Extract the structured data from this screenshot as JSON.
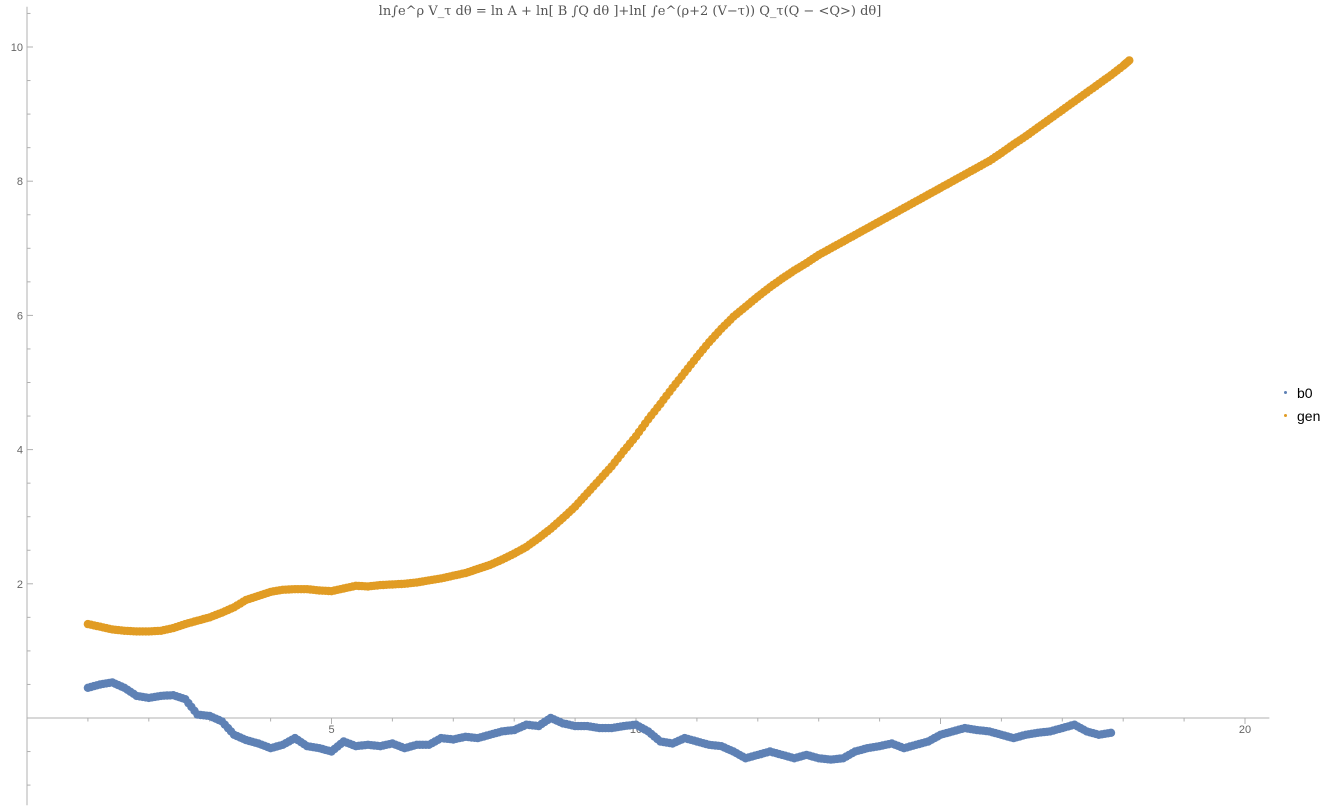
{
  "chart_data": {
    "type": "scatter",
    "title": "ln∫e^ρ V_τ dθ = ln A + ln[ B ∫Q dθ ]+ln[ ∫e^(ρ+2 (V−τ)) Q_τ(Q − <Q>) dθ]",
    "xlabel": "",
    "ylabel": "",
    "xlim": [
      0,
      20.4
    ],
    "ylim": [
      -1.3,
      10.6
    ],
    "x_ticks": [
      "5",
      "10",
      "20"
    ],
    "y_ticks": [
      "2",
      "4",
      "6",
      "8",
      "10"
    ],
    "grid": false,
    "legend_position": "right",
    "series": [
      {
        "name": "b0",
        "color": "#5E81B5",
        "points": [
          [
            1.0,
            0.45
          ],
          [
            1.2,
            0.5
          ],
          [
            1.4,
            0.53
          ],
          [
            1.6,
            0.45
          ],
          [
            1.8,
            0.33
          ],
          [
            2.0,
            0.3
          ],
          [
            2.2,
            0.33
          ],
          [
            2.4,
            0.34
          ],
          [
            2.6,
            0.28
          ],
          [
            2.8,
            0.05
          ],
          [
            3.0,
            0.03
          ],
          [
            3.2,
            -0.05
          ],
          [
            3.4,
            -0.25
          ],
          [
            3.6,
            -0.33
          ],
          [
            3.8,
            -0.38
          ],
          [
            4.0,
            -0.45
          ],
          [
            4.2,
            -0.4
          ],
          [
            4.4,
            -0.3
          ],
          [
            4.6,
            -0.42
          ],
          [
            4.8,
            -0.45
          ],
          [
            5.0,
            -0.5
          ],
          [
            5.2,
            -0.35
          ],
          [
            5.4,
            -0.42
          ],
          [
            5.6,
            -0.4
          ],
          [
            5.8,
            -0.42
          ],
          [
            6.0,
            -0.38
          ],
          [
            6.2,
            -0.45
          ],
          [
            6.4,
            -0.4
          ],
          [
            6.6,
            -0.4
          ],
          [
            6.8,
            -0.3
          ],
          [
            7.0,
            -0.32
          ],
          [
            7.2,
            -0.28
          ],
          [
            7.4,
            -0.3
          ],
          [
            7.6,
            -0.25
          ],
          [
            7.8,
            -0.2
          ],
          [
            8.0,
            -0.18
          ],
          [
            8.2,
            -0.1
          ],
          [
            8.4,
            -0.12
          ],
          [
            8.6,
            0.0
          ],
          [
            8.8,
            -0.08
          ],
          [
            9.0,
            -0.12
          ],
          [
            9.2,
            -0.12
          ],
          [
            9.4,
            -0.15
          ],
          [
            9.6,
            -0.15
          ],
          [
            9.8,
            -0.12
          ],
          [
            10.0,
            -0.1
          ],
          [
            10.2,
            -0.2
          ],
          [
            10.4,
            -0.35
          ],
          [
            10.6,
            -0.38
          ],
          [
            10.8,
            -0.3
          ],
          [
            11.0,
            -0.35
          ],
          [
            11.2,
            -0.4
          ],
          [
            11.4,
            -0.42
          ],
          [
            11.6,
            -0.5
          ],
          [
            11.8,
            -0.6
          ],
          [
            12.0,
            -0.55
          ],
          [
            12.2,
            -0.5
          ],
          [
            12.4,
            -0.55
          ],
          [
            12.6,
            -0.6
          ],
          [
            12.8,
            -0.55
          ],
          [
            13.0,
            -0.6
          ],
          [
            13.2,
            -0.62
          ],
          [
            13.4,
            -0.6
          ],
          [
            13.6,
            -0.5
          ],
          [
            13.8,
            -0.45
          ],
          [
            14.0,
            -0.42
          ],
          [
            14.2,
            -0.38
          ],
          [
            14.4,
            -0.45
          ],
          [
            14.6,
            -0.4
          ],
          [
            14.8,
            -0.35
          ],
          [
            15.0,
            -0.25
          ],
          [
            15.2,
            -0.2
          ],
          [
            15.4,
            -0.15
          ],
          [
            15.6,
            -0.18
          ],
          [
            15.8,
            -0.2
          ],
          [
            16.0,
            -0.25
          ],
          [
            16.2,
            -0.3
          ],
          [
            16.4,
            -0.25
          ],
          [
            16.6,
            -0.22
          ],
          [
            16.8,
            -0.2
          ],
          [
            17.0,
            -0.15
          ],
          [
            17.2,
            -0.1
          ],
          [
            17.4,
            -0.2
          ],
          [
            17.6,
            -0.25
          ],
          [
            17.8,
            -0.22
          ]
        ]
      },
      {
        "name": "gen",
        "color": "#E19C24",
        "points": [
          [
            1.0,
            1.4
          ],
          [
            1.2,
            1.36
          ],
          [
            1.4,
            1.32
          ],
          [
            1.6,
            1.3
          ],
          [
            1.8,
            1.29
          ],
          [
            2.0,
            1.29
          ],
          [
            2.2,
            1.3
          ],
          [
            2.4,
            1.34
          ],
          [
            2.6,
            1.4
          ],
          [
            2.8,
            1.45
          ],
          [
            3.0,
            1.5
          ],
          [
            3.2,
            1.57
          ],
          [
            3.4,
            1.65
          ],
          [
            3.6,
            1.76
          ],
          [
            3.8,
            1.82
          ],
          [
            4.0,
            1.88
          ],
          [
            4.2,
            1.91
          ],
          [
            4.4,
            1.92
          ],
          [
            4.6,
            1.92
          ],
          [
            4.8,
            1.9
          ],
          [
            5.0,
            1.89
          ],
          [
            5.2,
            1.93
          ],
          [
            5.4,
            1.97
          ],
          [
            5.6,
            1.96
          ],
          [
            5.8,
            1.98
          ],
          [
            6.0,
            1.99
          ],
          [
            6.2,
            2.0
          ],
          [
            6.4,
            2.02
          ],
          [
            6.6,
            2.05
          ],
          [
            6.8,
            2.08
          ],
          [
            7.0,
            2.12
          ],
          [
            7.2,
            2.16
          ],
          [
            7.4,
            2.22
          ],
          [
            7.6,
            2.28
          ],
          [
            7.8,
            2.36
          ],
          [
            8.0,
            2.45
          ],
          [
            8.2,
            2.55
          ],
          [
            8.4,
            2.68
          ],
          [
            8.6,
            2.82
          ],
          [
            8.8,
            2.98
          ],
          [
            9.0,
            3.15
          ],
          [
            9.2,
            3.35
          ],
          [
            9.4,
            3.55
          ],
          [
            9.6,
            3.75
          ],
          [
            9.8,
            3.98
          ],
          [
            10.0,
            4.2
          ],
          [
            10.2,
            4.45
          ],
          [
            10.4,
            4.68
          ],
          [
            10.6,
            4.92
          ],
          [
            10.8,
            5.15
          ],
          [
            11.0,
            5.38
          ],
          [
            11.2,
            5.6
          ],
          [
            11.4,
            5.8
          ],
          [
            11.6,
            5.98
          ],
          [
            11.8,
            6.13
          ],
          [
            12.0,
            6.28
          ],
          [
            12.2,
            6.42
          ],
          [
            12.4,
            6.55
          ],
          [
            12.6,
            6.67
          ],
          [
            12.8,
            6.78
          ],
          [
            13.0,
            6.9
          ],
          [
            13.2,
            7.0
          ],
          [
            13.4,
            7.1
          ],
          [
            13.6,
            7.2
          ],
          [
            13.8,
            7.3
          ],
          [
            14.0,
            7.4
          ],
          [
            14.2,
            7.5
          ],
          [
            14.4,
            7.6
          ],
          [
            14.6,
            7.7
          ],
          [
            14.8,
            7.8
          ],
          [
            15.0,
            7.9
          ],
          [
            15.2,
            8.0
          ],
          [
            15.4,
            8.1
          ],
          [
            15.6,
            8.2
          ],
          [
            15.8,
            8.3
          ],
          [
            16.0,
            8.42
          ],
          [
            16.2,
            8.55
          ],
          [
            16.4,
            8.67
          ],
          [
            16.6,
            8.8
          ],
          [
            16.8,
            8.93
          ],
          [
            17.0,
            9.06
          ],
          [
            17.2,
            9.19
          ],
          [
            17.4,
            9.32
          ],
          [
            17.6,
            9.45
          ],
          [
            17.8,
            9.58
          ],
          [
            18.0,
            9.72
          ],
          [
            18.1,
            9.8
          ]
        ]
      }
    ]
  }
}
